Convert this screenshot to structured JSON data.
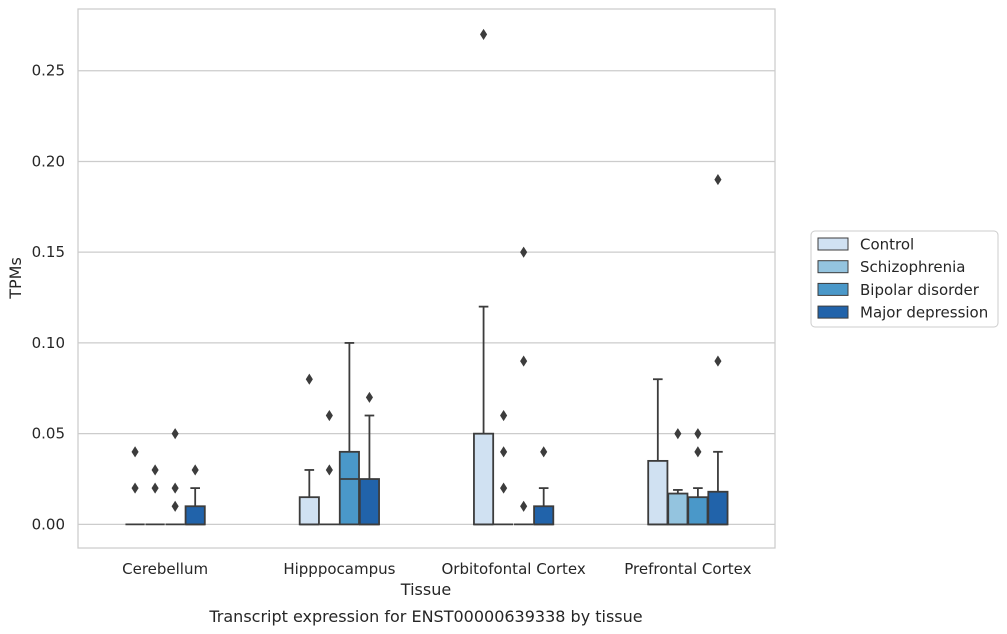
{
  "chart_data": {
    "type": "box",
    "xlabel": "Tissue",
    "ylabel": "TPMs",
    "caption": "Transcript expression for ENST00000639338 by tissue",
    "ylim": [
      -0.013,
      0.284
    ],
    "yticks": [
      0.0,
      0.05,
      0.1,
      0.15,
      0.2,
      0.25
    ],
    "ytick_labels": [
      "0.00",
      "0.05",
      "0.10",
      "0.15",
      "0.20",
      "0.25"
    ],
    "grid": "horizontal",
    "legend_position": "right",
    "categories": [
      "Cerebellum",
      "Hipppocampus",
      "Orbitofontal Cortex",
      "Prefrontal Cortex"
    ],
    "series": [
      {
        "name": "Control",
        "color": "#d0e1f2",
        "boxes": [
          {
            "q1": 0.0,
            "median": 0.0,
            "q3": 0.0,
            "whisker_low": 0.0,
            "whisker_high": 0.0,
            "outliers": [
              0.02,
              0.04
            ]
          },
          {
            "q1": 0.0,
            "median": 0.0,
            "q3": 0.015,
            "whisker_low": 0.0,
            "whisker_high": 0.03,
            "outliers": [
              0.08
            ]
          },
          {
            "q1": 0.0,
            "median": 0.0,
            "q3": 0.05,
            "whisker_low": 0.0,
            "whisker_high": 0.12,
            "outliers": [
              0.27
            ]
          },
          {
            "q1": 0.0,
            "median": 0.0,
            "q3": 0.035,
            "whisker_low": 0.0,
            "whisker_high": 0.08,
            "outliers": []
          }
        ]
      },
      {
        "name": "Schizophrenia",
        "color": "#94c4df",
        "boxes": [
          {
            "q1": 0.0,
            "median": 0.0,
            "q3": 0.0,
            "whisker_low": 0.0,
            "whisker_high": 0.0,
            "outliers": [
              0.02,
              0.03
            ]
          },
          {
            "q1": 0.0,
            "median": 0.0,
            "q3": 0.0,
            "whisker_low": 0.0,
            "whisker_high": 0.0,
            "outliers": [
              0.03,
              0.06
            ]
          },
          {
            "q1": 0.0,
            "median": 0.0,
            "q3": 0.0,
            "whisker_low": 0.0,
            "whisker_high": 0.0,
            "outliers": [
              0.02,
              0.04,
              0.06
            ]
          },
          {
            "q1": 0.0,
            "median": 0.0,
            "q3": 0.017,
            "whisker_low": 0.0,
            "whisker_high": 0.019,
            "outliers": [
              0.05
            ]
          }
        ]
      },
      {
        "name": "Bipolar disorder",
        "color": "#4a98c9",
        "boxes": [
          {
            "q1": 0.0,
            "median": 0.0,
            "q3": 0.0,
            "whisker_low": 0.0,
            "whisker_high": 0.0,
            "outliers": [
              0.01,
              0.02,
              0.05
            ]
          },
          {
            "q1": 0.0,
            "median": 0.025,
            "q3": 0.04,
            "whisker_low": 0.0,
            "whisker_high": 0.1,
            "outliers": []
          },
          {
            "q1": 0.0,
            "median": 0.0,
            "q3": 0.0,
            "whisker_low": 0.0,
            "whisker_high": 0.0,
            "outliers": [
              0.01,
              0.09,
              0.15
            ]
          },
          {
            "q1": 0.0,
            "median": 0.0,
            "q3": 0.015,
            "whisker_low": 0.0,
            "whisker_high": 0.02,
            "outliers": [
              0.04,
              0.05
            ]
          }
        ]
      },
      {
        "name": "Major depression",
        "color": "#2163aa",
        "boxes": [
          {
            "q1": 0.0,
            "median": 0.0,
            "q3": 0.01,
            "whisker_low": 0.0,
            "whisker_high": 0.02,
            "outliers": [
              0.03
            ]
          },
          {
            "q1": 0.0,
            "median": 0.0,
            "q3": 0.025,
            "whisker_low": 0.0,
            "whisker_high": 0.06,
            "outliers": [
              0.07
            ]
          },
          {
            "q1": 0.0,
            "median": 0.0,
            "q3": 0.01,
            "whisker_low": 0.0,
            "whisker_high": 0.02,
            "outliers": [
              0.04
            ]
          },
          {
            "q1": 0.0,
            "median": 0.0,
            "q3": 0.018,
            "whisker_low": 0.0,
            "whisker_high": 0.04,
            "outliers": [
              0.09,
              0.19
            ]
          }
        ]
      }
    ]
  }
}
